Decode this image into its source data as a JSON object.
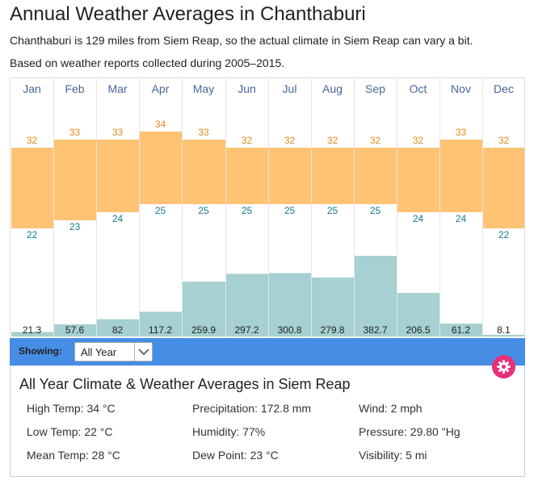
{
  "page": {
    "title": "Annual Weather Averages in Chanthaburi",
    "subtitle_distance": "Chanthaburi is 129 miles from Siem Reap, so the actual climate in Siem Reap can vary a bit.",
    "subtitle_period": "Based on weather reports collected during 2005–2015."
  },
  "chart_data": {
    "type": "bar",
    "categories": [
      "Jan",
      "Feb",
      "Mar",
      "Apr",
      "May",
      "Jun",
      "Jul",
      "Aug",
      "Sep",
      "Oct",
      "Nov",
      "Dec"
    ],
    "series": [
      {
        "values": [
          32,
          33,
          33,
          34,
          33,
          32,
          32,
          32,
          32,
          32,
          33,
          32
        ]
      },
      {
        "values": [
          22,
          23,
          24,
          25,
          25,
          25,
          25,
          25,
          25,
          24,
          24,
          22
        ]
      },
      {
        "values": [
          21.3,
          57.6,
          82,
          117.2,
          259.9,
          297.2,
          300.8,
          279.8,
          382.7,
          206.5,
          61.2,
          8.1
        ]
      }
    ],
    "grid": true,
    "colors": {
      "temperature": "#ffc374",
      "precipitation": "#a6d0d1",
      "high_label": "#e38a1d",
      "low_label": "#17778c",
      "month_label": "#46659b",
      "grid": "#e6e6e6"
    }
  },
  "controls": {
    "showing_label": "Showing:",
    "period_selected": "All Year",
    "toolbar_color": "#468ee5",
    "gear_color": "#e6307a"
  },
  "summary": {
    "title": "All Year Climate & Weather Averages in Siem Reap",
    "stats": [
      "High Temp: 34 °C",
      "Precipitation: 172.8 mm",
      "Wind: 2 mph",
      "Low Temp: 22 °C",
      "Humidity: 77%",
      "Pressure: 29.80 \"Hg",
      "Mean Temp: 28 °C",
      "Dew Point: 23 °C",
      "Visibility: 5 mi"
    ]
  }
}
